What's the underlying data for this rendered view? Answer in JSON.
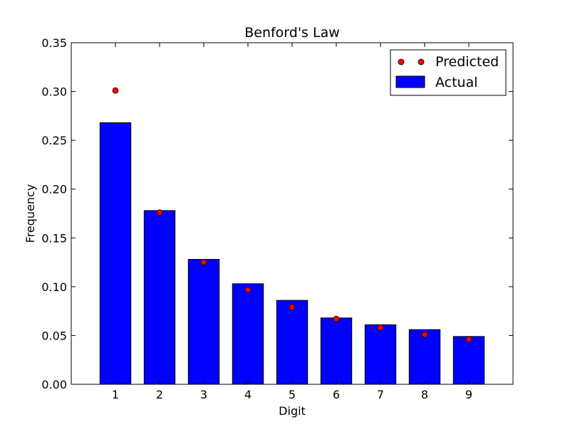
{
  "chart_data": {
    "type": "bar",
    "title": "Benford's Law",
    "xlabel": "Digit",
    "ylabel": "Frequency",
    "categories": [
      "1",
      "2",
      "3",
      "4",
      "5",
      "6",
      "7",
      "8",
      "9"
    ],
    "x": [
      1,
      2,
      3,
      4,
      5,
      6,
      7,
      8,
      9
    ],
    "xlim": [
      0,
      10
    ],
    "ylim": [
      0,
      0.35
    ],
    "yticks": [
      "0.00",
      "0.05",
      "0.10",
      "0.15",
      "0.20",
      "0.25",
      "0.30",
      "0.35"
    ],
    "grid": false,
    "legend_position": "top-right",
    "series": [
      {
        "name": "Actual",
        "kind": "bar",
        "color": "#0000ff",
        "values": [
          0.268,
          0.178,
          0.128,
          0.103,
          0.086,
          0.068,
          0.061,
          0.056,
          0.049
        ]
      },
      {
        "name": "Predicted",
        "kind": "points",
        "color": "#ff0000",
        "values": [
          0.301,
          0.176,
          0.125,
          0.097,
          0.079,
          0.067,
          0.058,
          0.051,
          0.046
        ]
      }
    ]
  }
}
